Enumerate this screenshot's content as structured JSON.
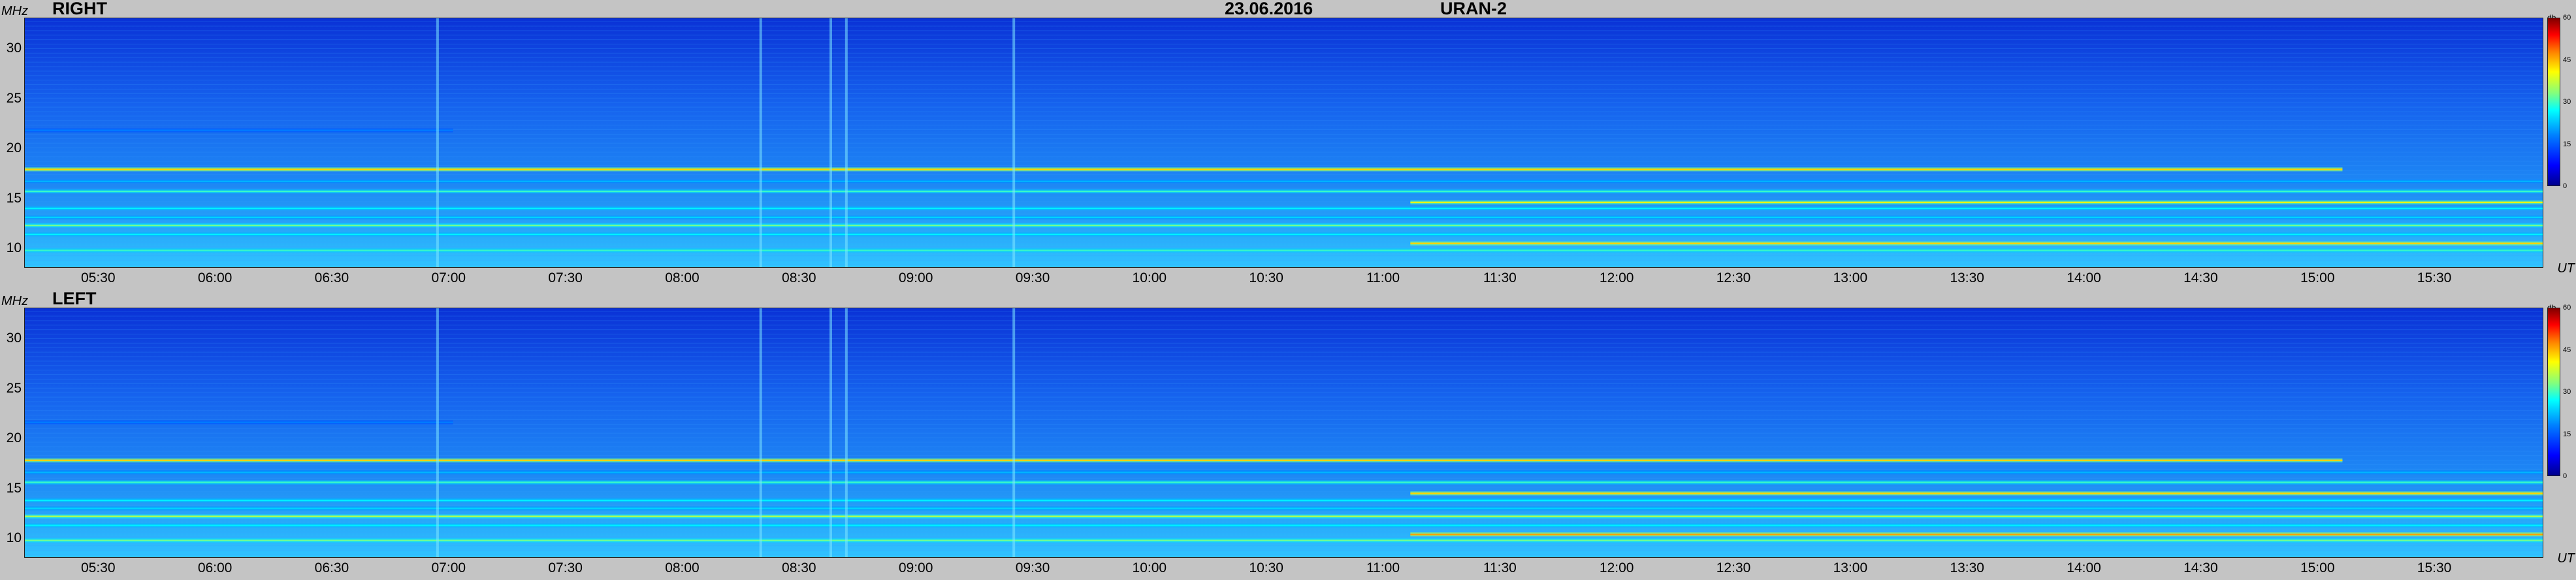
{
  "header": {
    "date": "23.06.2016",
    "instrument": "URAN-2"
  },
  "units": {
    "frequency": "MHz",
    "time": "UT",
    "intensity": "db"
  },
  "colors": {
    "background": "#c4c4c4",
    "base": "#1b6ef0",
    "accent_low": "#00008c",
    "accent_high": "#800000"
  },
  "chart_data": [
    {
      "type": "heatmap",
      "title": "RIGHT",
      "ylabel": "MHz",
      "xlabel": "UT",
      "ylim": [
        8,
        33
      ],
      "yticks": [
        "10",
        "15",
        "20",
        "25",
        "30"
      ],
      "xticks": [
        "05:30",
        "06:00",
        "06:30",
        "07:00",
        "07:30",
        "08:00",
        "08:30",
        "09:00",
        "09:30",
        "10:00",
        "10:30",
        "11:00",
        "11:30",
        "12:00",
        "12:30",
        "13:00",
        "13:30",
        "14:00",
        "14:30",
        "15:00",
        "15:30"
      ],
      "colorbar": {
        "label": "db",
        "range": [
          0,
          60
        ],
        "ticks": [
          "0",
          "15",
          "30",
          "45",
          "60"
        ]
      },
      "horizontal_bands": [
        {
          "freq": 9.8,
          "intensity": 0.55,
          "start": 0,
          "end": 1
        },
        {
          "freq": 10.5,
          "intensity": 0.75,
          "start": 0.55,
          "end": 1
        },
        {
          "freq": 11.4,
          "intensity": 0.5,
          "start": 0,
          "end": 1
        },
        {
          "freq": 12.3,
          "intensity": 0.6,
          "start": 0,
          "end": 1
        },
        {
          "freq": 13.1,
          "intensity": 0.45,
          "start": 0,
          "end": 1
        },
        {
          "freq": 14.0,
          "intensity": 0.5,
          "start": 0,
          "end": 1
        },
        {
          "freq": 14.6,
          "intensity": 0.7,
          "start": 0.55,
          "end": 1
        },
        {
          "freq": 15.7,
          "intensity": 0.55,
          "start": 0,
          "end": 1
        },
        {
          "freq": 16.7,
          "intensity": 0.4,
          "start": 0,
          "end": 1
        },
        {
          "freq": 17.9,
          "intensity": 0.75,
          "start": 0,
          "end": 0.92
        },
        {
          "freq": 21.8,
          "intensity": 0.3,
          "start": 0,
          "end": 0.17
        }
      ],
      "vertical_bursts": [
        "06:57",
        "08:20",
        "08:38",
        "08:42",
        "09:25"
      ]
    },
    {
      "type": "heatmap",
      "title": "LEFT",
      "ylabel": "MHz",
      "xlabel": "UT",
      "ylim": [
        8,
        33
      ],
      "yticks": [
        "10",
        "15",
        "20",
        "25",
        "30"
      ],
      "xticks": [
        "05:30",
        "06:00",
        "06:30",
        "07:00",
        "07:30",
        "08:00",
        "08:30",
        "09:00",
        "09:30",
        "10:00",
        "10:30",
        "11:00",
        "11:30",
        "12:00",
        "12:30",
        "13:00",
        "13:30",
        "14:00",
        "14:30",
        "15:00",
        "15:30"
      ],
      "colorbar": {
        "label": "db",
        "range": [
          0,
          60
        ],
        "ticks": [
          "0",
          "15",
          "30",
          "45",
          "60"
        ]
      },
      "horizontal_bands": [
        {
          "freq": 9.8,
          "intensity": 0.6,
          "start": 0,
          "end": 1
        },
        {
          "freq": 10.4,
          "intensity": 0.8,
          "start": 0.55,
          "end": 1
        },
        {
          "freq": 11.3,
          "intensity": 0.5,
          "start": 0,
          "end": 1
        },
        {
          "freq": 12.2,
          "intensity": 0.65,
          "start": 0,
          "end": 1
        },
        {
          "freq": 13.0,
          "intensity": 0.45,
          "start": 0,
          "end": 1
        },
        {
          "freq": 13.8,
          "intensity": 0.5,
          "start": 0,
          "end": 1
        },
        {
          "freq": 14.5,
          "intensity": 0.75,
          "start": 0.55,
          "end": 1
        },
        {
          "freq": 15.6,
          "intensity": 0.55,
          "start": 0,
          "end": 1
        },
        {
          "freq": 16.6,
          "intensity": 0.4,
          "start": 0,
          "end": 1
        },
        {
          "freq": 17.8,
          "intensity": 0.75,
          "start": 0,
          "end": 0.92
        },
        {
          "freq": 21.6,
          "intensity": 0.3,
          "start": 0,
          "end": 0.17
        }
      ],
      "vertical_bursts": [
        "06:57",
        "08:20",
        "08:38",
        "08:42",
        "09:25"
      ]
    }
  ]
}
